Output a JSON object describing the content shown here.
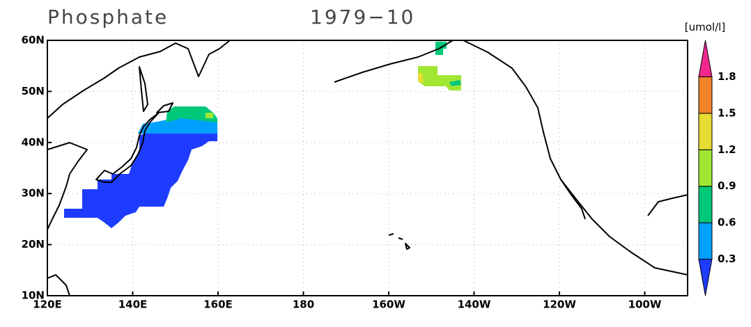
{
  "title": "Phosphate",
  "period": "1979−10",
  "unit": "[umol/l]",
  "x_axis": {
    "labels": [
      "120E",
      "140E",
      "160E",
      "180",
      "160W",
      "140W",
      "120W",
      "100W"
    ]
  },
  "y_axis": {
    "labels": [
      "10N",
      "20N",
      "30N",
      "40N",
      "50N",
      "60N"
    ]
  },
  "colorbar": {
    "levels": [
      0.3,
      0.6,
      0.9,
      1.2,
      1.5,
      1.8
    ],
    "colors": [
      "#1e3cff",
      "#00a0ff",
      "#00c87a",
      "#a0e632",
      "#e6dc32",
      "#f08228",
      "#f0288c"
    ]
  }
}
